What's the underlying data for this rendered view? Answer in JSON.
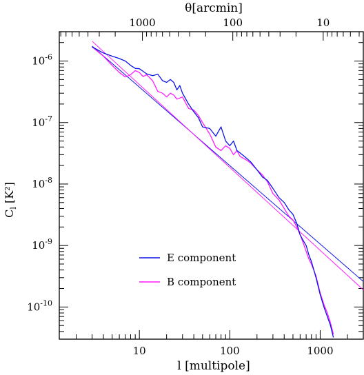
{
  "chart_data": {
    "type": "line",
    "xlabel": "l [multipole]",
    "ylabel": "C",
    "ylabel_sub": "l",
    "ylabel_unit": "[K²]",
    "top_label": "θ[arcmin]",
    "x_scale": "log",
    "y_scale": "log",
    "xlim": [
      1.3,
      3000
    ],
    "ylim": [
      3e-11,
      3e-06
    ],
    "grid": false,
    "legend_position": "bottom-left",
    "colors": {
      "E": "#0a14e6",
      "B": "#ff1aff"
    },
    "x_ticks": [
      {
        "value": 10,
        "label": "10"
      },
      {
        "value": 100,
        "label": "100"
      },
      {
        "value": 1000,
        "label": "1000"
      }
    ],
    "y_ticks": [
      {
        "value": 1e-06,
        "label": "10",
        "exp": "-6"
      },
      {
        "value": 1e-07,
        "label": "10",
        "exp": "-7"
      },
      {
        "value": 1e-08,
        "label": "10",
        "exp": "-8"
      },
      {
        "value": 1e-09,
        "label": "10",
        "exp": "-9"
      },
      {
        "value": 1e-10,
        "label": "10",
        "exp": "-10"
      }
    ],
    "top_ticks": [
      {
        "arcmin": 1000,
        "label": "1000"
      },
      {
        "arcmin": 100,
        "label": "100"
      },
      {
        "arcmin": 10,
        "label": "10"
      }
    ],
    "series": [
      {
        "name": "E component",
        "key": "E",
        "points": [
          [
            3,
            1.7e-06
          ],
          [
            4,
            1.35e-06
          ],
          [
            5,
            1.2e-06
          ],
          [
            6,
            1.1e-06
          ],
          [
            7,
            1e-06
          ],
          [
            8,
            8.5e-07
          ],
          [
            9,
            7.6e-07
          ],
          [
            10,
            7.5e-07
          ],
          [
            11,
            6.8e-07
          ],
          [
            12,
            6.2e-07
          ],
          [
            14,
            5.8e-07
          ],
          [
            16,
            6.1e-07
          ],
          [
            18,
            4.8e-07
          ],
          [
            20,
            4.5e-07
          ],
          [
            22,
            5e-07
          ],
          [
            24,
            4.5e-07
          ],
          [
            26,
            3.4e-07
          ],
          [
            28,
            4e-07
          ],
          [
            30,
            3e-07
          ],
          [
            35,
            2e-07
          ],
          [
            40,
            1.5e-07
          ],
          [
            45,
            1.2e-07
          ],
          [
            50,
            8.5e-08
          ],
          [
            60,
            8e-08
          ],
          [
            70,
            6e-08
          ],
          [
            80,
            8.5e-08
          ],
          [
            90,
            5e-08
          ],
          [
            100,
            4.2e-08
          ],
          [
            110,
            5e-08
          ],
          [
            120,
            3.5e-08
          ],
          [
            130,
            3.2e-08
          ],
          [
            150,
            2.7e-08
          ],
          [
            170,
            2.3e-08
          ],
          [
            200,
            1.7e-08
          ],
          [
            230,
            1.3e-08
          ],
          [
            260,
            1.15e-08
          ],
          [
            300,
            8.5e-09
          ],
          [
            350,
            6e-09
          ],
          [
            400,
            5e-09
          ],
          [
            450,
            3.8e-09
          ],
          [
            500,
            3.2e-09
          ],
          [
            550,
            2.3e-09
          ],
          [
            600,
            1.5e-09
          ],
          [
            650,
            1.2e-09
          ],
          [
            700,
            1e-09
          ],
          [
            750,
            7e-10
          ],
          [
            800,
            5.5e-10
          ],
          [
            900,
            3e-10
          ],
          [
            1000,
            1.6e-10
          ],
          [
            1100,
            1e-10
          ],
          [
            1200,
            7e-11
          ],
          [
            1300,
            5e-11
          ],
          [
            1400,
            3.2e-11
          ]
        ]
      },
      {
        "name": "B component",
        "key": "B",
        "points": [
          [
            3,
            1.7e-06
          ],
          [
            4,
            1.2e-06
          ],
          [
            5,
            8.5e-07
          ],
          [
            6,
            6.5e-07
          ],
          [
            7,
            5.5e-07
          ],
          [
            8,
            6e-07
          ],
          [
            9,
            7e-07
          ],
          [
            10,
            6.5e-07
          ],
          [
            11,
            5.6e-07
          ],
          [
            12,
            6e-07
          ],
          [
            14,
            4.8e-07
          ],
          [
            16,
            3.2e-07
          ],
          [
            18,
            3e-07
          ],
          [
            20,
            2.6e-07
          ],
          [
            22,
            3e-07
          ],
          [
            24,
            2.8e-07
          ],
          [
            26,
            2.4e-07
          ],
          [
            30,
            2.6e-07
          ],
          [
            35,
            1.7e-07
          ],
          [
            40,
            1.6e-07
          ],
          [
            45,
            1.3e-07
          ],
          [
            50,
            1e-07
          ],
          [
            60,
            6.5e-08
          ],
          [
            70,
            4e-08
          ],
          [
            80,
            3.5e-08
          ],
          [
            90,
            4.2e-08
          ],
          [
            100,
            3.8e-08
          ],
          [
            110,
            3e-08
          ],
          [
            120,
            3.5e-08
          ],
          [
            130,
            2.8e-08
          ],
          [
            150,
            2.5e-08
          ],
          [
            170,
            2.2e-08
          ],
          [
            200,
            1.7e-08
          ],
          [
            230,
            1.4e-08
          ],
          [
            260,
            1.1e-08
          ],
          [
            300,
            7e-09
          ],
          [
            350,
            5.5e-09
          ],
          [
            400,
            4e-09
          ],
          [
            450,
            3e-09
          ],
          [
            500,
            2.6e-09
          ],
          [
            550,
            2e-09
          ],
          [
            600,
            1.5e-09
          ],
          [
            650,
            1.1e-09
          ],
          [
            700,
            8e-10
          ],
          [
            750,
            6e-10
          ],
          [
            800,
            5e-10
          ],
          [
            900,
            3.2e-10
          ],
          [
            1000,
            1.7e-10
          ],
          [
            1100,
            1.1e-10
          ],
          [
            1200,
            8e-11
          ],
          [
            1300,
            5.5e-11
          ],
          [
            1400,
            3.6e-11
          ]
        ]
      }
    ],
    "reference_lines": [
      {
        "key": "E",
        "from": [
          3,
          1.75e-06
        ],
        "to": [
          3000,
          2.6e-10
        ]
      },
      {
        "key": "B",
        "from": [
          3,
          2.1e-06
        ],
        "to": [
          3000,
          1.9e-10
        ]
      }
    ]
  }
}
